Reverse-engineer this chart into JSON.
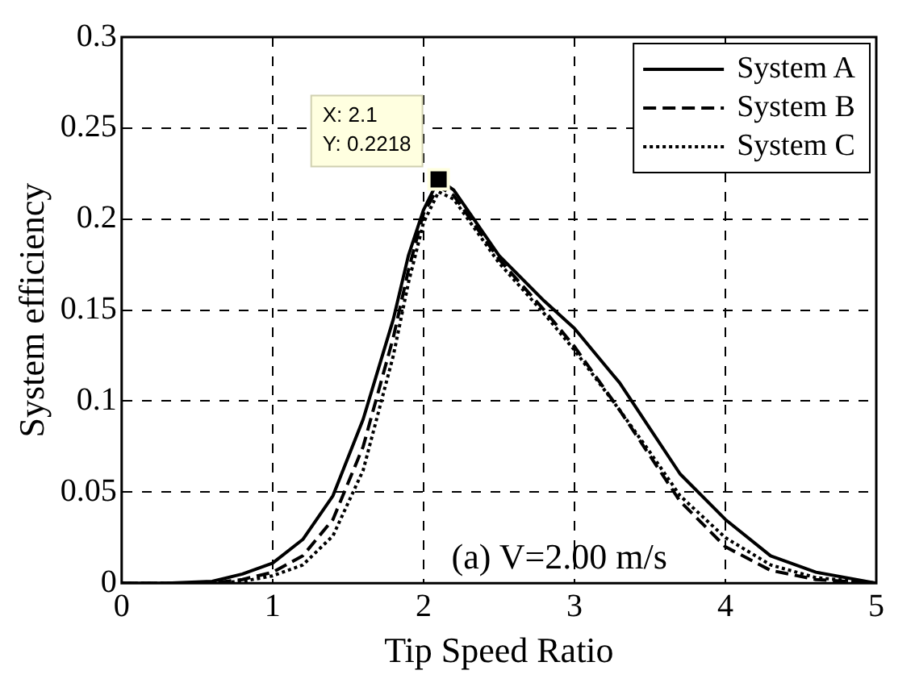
{
  "chart_data": {
    "type": "line",
    "xlabel": "Tip Speed Ratio",
    "ylabel": "System efficiency",
    "x": [
      0,
      0.3,
      0.6,
      0.8,
      1.0,
      1.2,
      1.4,
      1.6,
      1.8,
      1.9,
      2.0,
      2.1,
      2.2,
      2.5,
      2.8,
      3.0,
      3.3,
      3.5,
      3.7,
      4.0,
      4.3,
      4.6,
      5.0
    ],
    "series": [
      {
        "name": "System A",
        "color": "#000000",
        "line_style": "solid",
        "values": [
          0,
          0,
          0.001,
          0.005,
          0.011,
          0.024,
          0.048,
          0.09,
          0.145,
          0.18,
          0.205,
          0.2218,
          0.216,
          0.18,
          0.155,
          0.14,
          0.11,
          0.085,
          0.06,
          0.035,
          0.015,
          0.006,
          0
        ]
      },
      {
        "name": "System B",
        "color": "#000000",
        "line_style": "dashed",
        "values": [
          0,
          0,
          0,
          0.002,
          0.006,
          0.015,
          0.035,
          0.075,
          0.135,
          0.172,
          0.203,
          0.218,
          0.213,
          0.178,
          0.15,
          0.13,
          0.095,
          0.07,
          0.045,
          0.02,
          0.007,
          0.002,
          0
        ]
      },
      {
        "name": "System C",
        "color": "#000000",
        "line_style": "dotted",
        "values": [
          0,
          0,
          0,
          0.001,
          0.004,
          0.01,
          0.026,
          0.062,
          0.125,
          0.165,
          0.198,
          0.215,
          0.211,
          0.176,
          0.148,
          0.128,
          0.095,
          0.072,
          0.048,
          0.025,
          0.01,
          0.003,
          0
        ]
      }
    ],
    "xlim": [
      0,
      5
    ],
    "xticks": [
      0,
      1,
      2,
      3,
      4,
      5
    ],
    "ylim": [
      0,
      0.3
    ],
    "yticks": [
      0,
      0.05,
      0.1,
      0.15,
      0.2,
      0.25,
      0.3
    ],
    "grid": true,
    "legend": "top right",
    "marker": "none",
    "annotations": [
      {
        "text": "X: 2.1\nY: 0.2218",
        "x": 2.1,
        "y": 0.2218
      },
      "(a) V=2.00 m/s"
    ]
  }
}
